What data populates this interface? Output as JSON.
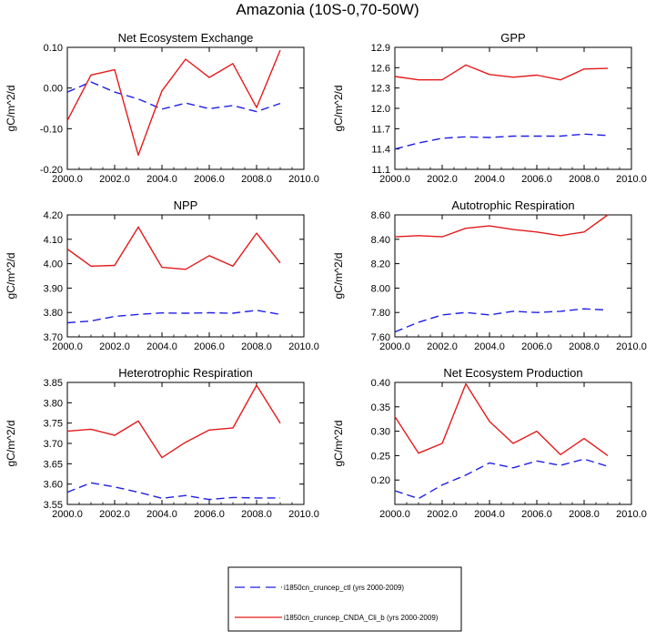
{
  "figure": {
    "title": "Amazonia (10S-0,70-50W)"
  },
  "colors": {
    "ctl": "#1f1fe6",
    "cnda": "#e41a1c",
    "axis": "#000000"
  },
  "chart_data": [
    {
      "type": "line",
      "title": "Net Ecosystem Exchange",
      "xlabel": "",
      "ylabel": "gC/m^2/d",
      "xlim": [
        2000,
        2010
      ],
      "ylim": [
        -0.2,
        0.1
      ],
      "xticks": [
        "2000.0",
        "2002.0",
        "2004.0",
        "2006.0",
        "2008.0",
        "2010.0"
      ],
      "yticks": [
        "0.10",
        "0.00",
        "-0.10",
        "-0.20"
      ],
      "x": [
        2000,
        2001,
        2002,
        2003,
        2004,
        2005,
        2006,
        2007,
        2008,
        2009
      ],
      "series": [
        {
          "name": "i1850cn_cruncep_ctl (yrs 2000-2009)",
          "style": "dashed",
          "values": [
            -0.01,
            0.015,
            -0.01,
            -0.027,
            -0.052,
            -0.037,
            -0.051,
            -0.043,
            -0.058,
            -0.038
          ]
        },
        {
          "name": "i1850cn_cruncep_CNDA_Cli_b (yrs 2000-2009)",
          "style": "solid",
          "values": [
            -0.08,
            0.032,
            0.045,
            -0.165,
            -0.007,
            0.071,
            0.026,
            0.06,
            -0.048,
            0.093
          ]
        }
      ]
    },
    {
      "type": "line",
      "title": "GPP",
      "xlabel": "",
      "ylabel": "gC/m^2/d",
      "xlim": [
        2000,
        2010
      ],
      "ylim": [
        11.1,
        12.9
      ],
      "xticks": [
        "2000.0",
        "2002.0",
        "2004.0",
        "2006.0",
        "2008.0",
        "2010.0"
      ],
      "yticks": [
        "12.9",
        "12.6",
        "12.3",
        "12.0",
        "11.7",
        "11.4",
        "11.1"
      ],
      "x": [
        2000,
        2001,
        2002,
        2003,
        2004,
        2005,
        2006,
        2007,
        2008,
        2009
      ],
      "series": [
        {
          "name": "i1850cn_cruncep_ctl (yrs 2000-2009)",
          "style": "dashed",
          "values": [
            11.4,
            11.49,
            11.56,
            11.58,
            11.57,
            11.59,
            11.59,
            11.59,
            11.62,
            11.6
          ]
        },
        {
          "name": "i1850cn_cruncep_CNDA_Cli_b (yrs 2000-2009)",
          "style": "solid",
          "values": [
            12.47,
            12.42,
            12.42,
            12.64,
            12.5,
            12.46,
            12.49,
            12.42,
            12.58,
            12.59
          ]
        }
      ]
    },
    {
      "type": "line",
      "title": "NPP",
      "xlabel": "",
      "ylabel": "gC/m^2/d",
      "xlim": [
        2000,
        2010
      ],
      "ylim": [
        3.7,
        4.2
      ],
      "xticks": [
        "2000.0",
        "2002.0",
        "2004.0",
        "2006.0",
        "2008.0",
        "2010.0"
      ],
      "yticks": [
        "4.20",
        "4.10",
        "4.00",
        "3.90",
        "3.80",
        "3.70"
      ],
      "x": [
        2000,
        2001,
        2002,
        2003,
        2004,
        2005,
        2006,
        2007,
        2008,
        2009
      ],
      "series": [
        {
          "name": "i1850cn_cruncep_ctl (yrs 2000-2009)",
          "style": "dashed",
          "values": [
            3.758,
            3.765,
            3.784,
            3.792,
            3.798,
            3.797,
            3.799,
            3.797,
            3.809,
            3.792
          ]
        },
        {
          "name": "i1850cn_cruncep_CNDA_Cli_b (yrs 2000-2009)",
          "style": "solid",
          "values": [
            4.06,
            3.99,
            3.993,
            4.15,
            3.985,
            3.977,
            4.033,
            3.99,
            4.125,
            4.003
          ]
        }
      ]
    },
    {
      "type": "line",
      "title": "Autotrophic Respiration",
      "xlabel": "",
      "ylabel": "gC/m^2/d",
      "xlim": [
        2000,
        2010
      ],
      "ylim": [
        7.6,
        8.6
      ],
      "xticks": [
        "2000.0",
        "2002.0",
        "2004.0",
        "2006.0",
        "2008.0",
        "2010.0"
      ],
      "yticks": [
        "8.60",
        "8.40",
        "8.20",
        "8.00",
        "7.80",
        "7.60"
      ],
      "x": [
        2000,
        2001,
        2002,
        2003,
        2004,
        2005,
        2006,
        2007,
        2008,
        2009
      ],
      "series": [
        {
          "name": "i1850cn_cruncep_ctl (yrs 2000-2009)",
          "style": "dashed",
          "values": [
            7.64,
            7.72,
            7.78,
            7.8,
            7.78,
            7.81,
            7.8,
            7.81,
            7.83,
            7.82
          ]
        },
        {
          "name": "i1850cn_cruncep_CNDA_Cli_b (yrs 2000-2009)",
          "style": "solid",
          "values": [
            8.42,
            8.43,
            8.42,
            8.49,
            8.51,
            8.48,
            8.46,
            8.43,
            8.46,
            8.6
          ]
        }
      ]
    },
    {
      "type": "line",
      "title": "Heterotrophic Respiration",
      "xlabel": "",
      "ylabel": "gC/m^2/d",
      "xlim": [
        2000,
        2010
      ],
      "ylim": [
        3.55,
        3.85
      ],
      "xticks": [
        "2000.0",
        "2002.0",
        "2004.0",
        "2006.0",
        "2008.0",
        "2010.0"
      ],
      "yticks": [
        "3.85",
        "3.80",
        "3.75",
        "3.70",
        "3.65",
        "3.60",
        "3.55"
      ],
      "x": [
        2000,
        2001,
        2002,
        2003,
        2004,
        2005,
        2006,
        2007,
        2008,
        2009
      ],
      "series": [
        {
          "name": "i1850cn_cruncep_ctl (yrs 2000-2009)",
          "style": "dashed",
          "values": [
            3.58,
            3.603,
            3.593,
            3.58,
            3.565,
            3.572,
            3.562,
            3.567,
            3.566,
            3.566
          ]
        },
        {
          "name": "i1850cn_cruncep_CNDA_Cli_b (yrs 2000-2009)",
          "style": "solid",
          "values": [
            3.73,
            3.735,
            3.72,
            3.755,
            3.665,
            3.703,
            3.733,
            3.738,
            3.843,
            3.75
          ]
        }
      ]
    },
    {
      "type": "line",
      "title": "Net Ecosystem Production",
      "xlabel": "",
      "ylabel": "gC/m^2/d",
      "xlim": [
        2000,
        2010
      ],
      "ylim": [
        0.15,
        0.4
      ],
      "xticks": [
        "2000.0",
        "2002.0",
        "2004.0",
        "2006.0",
        "2008.0",
        "2010.0"
      ],
      "yticks": [
        "0.40",
        "0.35",
        "0.30",
        "0.25",
        "0.20"
      ],
      "x": [
        2000,
        2001,
        2002,
        2003,
        2004,
        2005,
        2006,
        2007,
        2008,
        2009
      ],
      "series": [
        {
          "name": "i1850cn_cruncep_ctl (yrs 2000-2009)",
          "style": "dashed",
          "values": [
            0.178,
            0.162,
            0.19,
            0.21,
            0.235,
            0.225,
            0.239,
            0.23,
            0.243,
            0.228
          ]
        },
        {
          "name": "i1850cn_cruncep_CNDA_Cli_b (yrs 2000-2009)",
          "style": "solid",
          "values": [
            0.33,
            0.255,
            0.275,
            0.397,
            0.32,
            0.275,
            0.3,
            0.252,
            0.285,
            0.25
          ]
        }
      ]
    }
  ],
  "legend": {
    "items": [
      {
        "label": "i1850cn_cruncep_ctl (yrs 2000-2009)",
        "style": "dashed",
        "color": "#1f1fe6"
      },
      {
        "label": "i1850cn_cruncep_CNDA_Cli_b (yrs 2000-2009)",
        "style": "solid",
        "color": "#e41a1c"
      }
    ]
  }
}
